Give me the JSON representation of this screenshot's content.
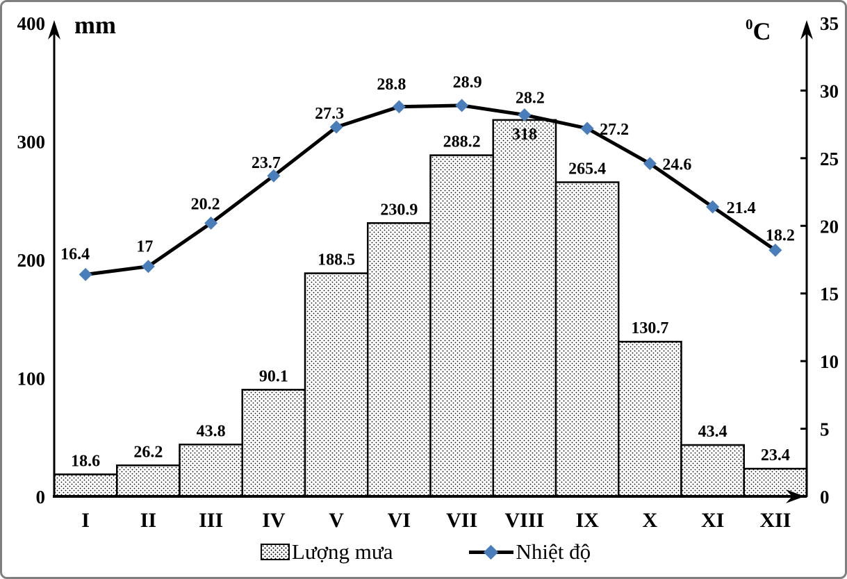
{
  "titles": {
    "left_unit": "mm",
    "right_unit_sup": "0",
    "right_unit_letter": "C"
  },
  "chart_data": {
    "type": "combo-bar-line",
    "title": "",
    "categories": [
      "I",
      "II",
      "III",
      "IV",
      "V",
      "VI",
      "VII",
      "VIII",
      "IX",
      "X",
      "XI",
      "XII"
    ],
    "series": [
      {
        "name": "Lượng mưa",
        "chart": "bar",
        "axis": "left",
        "unit": "mm",
        "values": [
          18.6,
          26.2,
          43.8,
          90.1,
          188.5,
          230.9,
          288.2,
          318,
          265.4,
          130.7,
          43.4,
          23.4
        ],
        "labels": [
          "18.6",
          "26.2",
          "43.8",
          "90.1",
          "188.5",
          "230.9",
          "288.2",
          "318",
          "265.4",
          "130.7",
          "43.4",
          "23.4"
        ]
      },
      {
        "name": "Nhiệt độ",
        "chart": "line",
        "axis": "right",
        "unit": "°C",
        "values": [
          16.4,
          17,
          20.2,
          23.7,
          27.3,
          28.8,
          28.9,
          28.2,
          27.2,
          24.6,
          21.4,
          18.2
        ],
        "labels": [
          "16.4",
          "17",
          "20.2",
          "23.7",
          "27.3",
          "28.8",
          "28.9",
          "28.2",
          "27.2",
          "24.6",
          "21.4",
          "18.2"
        ]
      }
    ],
    "left_axis": {
      "title": "mm",
      "range": [
        0,
        400
      ],
      "tick_values": [
        400,
        300,
        200,
        100,
        0
      ],
      "tick_labels": [
        "400",
        "300",
        "200",
        "100",
        "0"
      ]
    },
    "right_axis": {
      "title": "0C",
      "range": [
        0,
        35
      ],
      "tick_values": [
        35,
        30,
        25,
        20,
        15,
        10,
        5,
        0
      ],
      "tick_labels": [
        "35",
        "30",
        "25",
        "20",
        "15",
        "10",
        "5",
        "0"
      ]
    },
    "legend_position": "bottom",
    "grid": false
  },
  "colors": {
    "temp_marker": "#4a7ebb",
    "temp_line": "#000000",
    "bar_border": "#000000",
    "bar_fill": "#ffffff",
    "bar_dot": "#000000",
    "text": "#000000",
    "frame_border": "#7f7f7f"
  }
}
